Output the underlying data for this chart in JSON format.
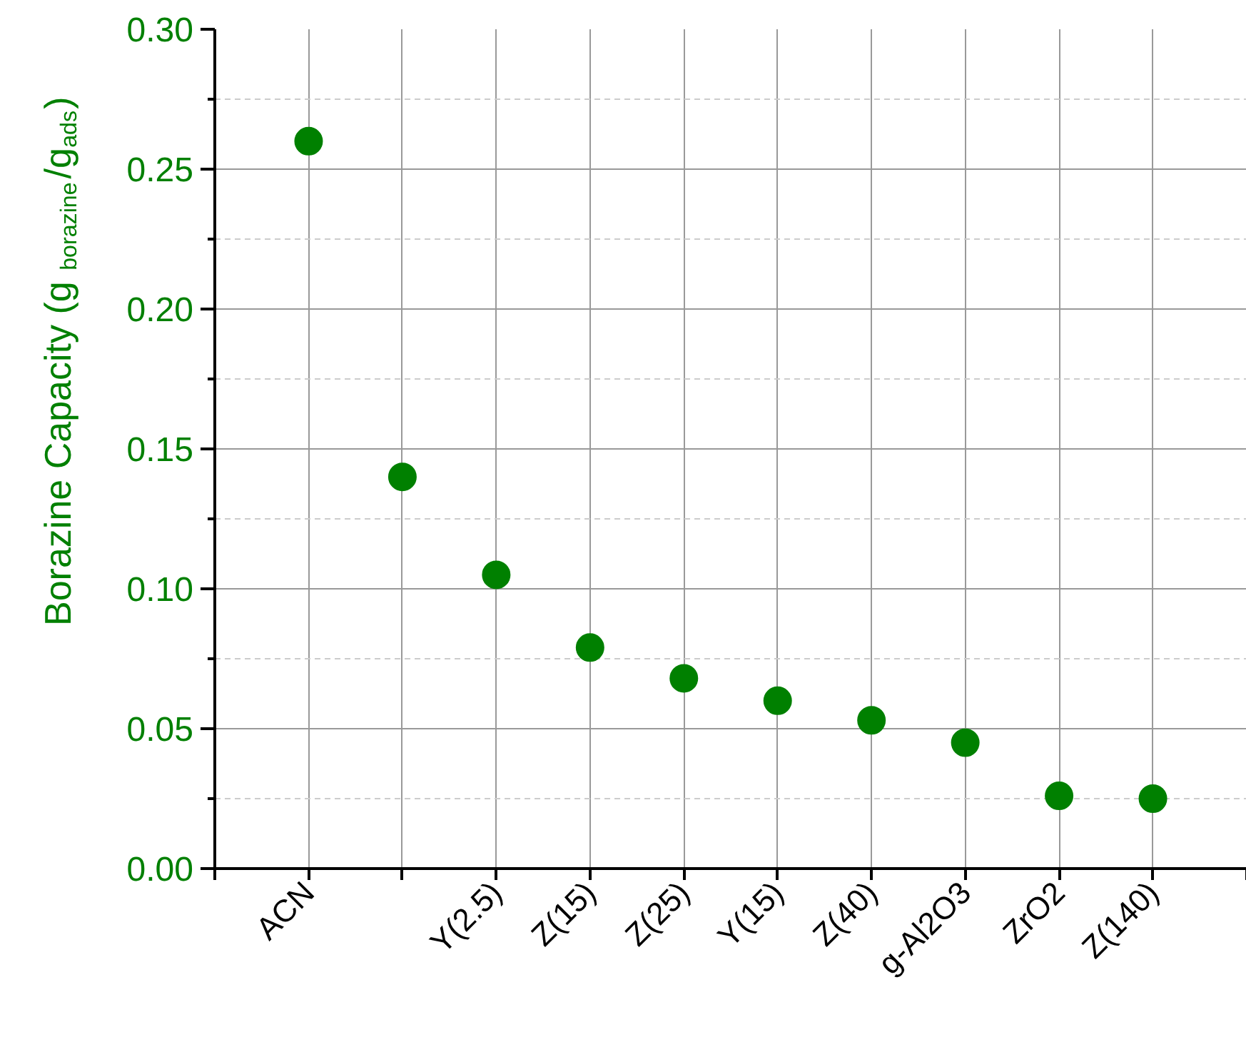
{
  "chart_data": {
    "type": "scatter",
    "ylabel": "Borazine Capacity (g$_{borazine}$/g$_{ads}$)",
    "categories": [
      "ACN",
      null,
      "Y(2.5)",
      "Z(15)",
      "Z(25)",
      "Y(15)",
      "Z(40)",
      "g-Al2O3",
      "ZrO2",
      "Z(140)"
    ],
    "series": [
      {
        "color": "#008000",
        "values": [
          0.26,
          0.14,
          0.105,
          0.079,
          0.068,
          0.06,
          0.053,
          0.045,
          0.026,
          0.025
        ]
      }
    ],
    "ylim": [
      0,
      0.3
    ],
    "yticks": [
      {
        "value": 0,
        "label": "0.00"
      },
      {
        "value": 0.025,
        "label": null
      },
      {
        "value": 0.05,
        "label": "0.05"
      },
      {
        "value": 0.075,
        "label": null
      },
      {
        "value": 0.1,
        "label": "0.10"
      },
      {
        "value": 0.125,
        "label": null
      },
      {
        "value": 0.15,
        "label": "0.15"
      },
      {
        "value": 0.175,
        "label": null
      },
      {
        "value": 0.2,
        "label": "0.20"
      },
      {
        "value": 0.225,
        "label": null
      },
      {
        "value": 0.25,
        "label": "0.25"
      },
      {
        "value": 0.275,
        "label": null
      },
      {
        "value": 0.3,
        "label": "0.30"
      }
    ],
    "grid": true,
    "marker": "circle"
  }
}
